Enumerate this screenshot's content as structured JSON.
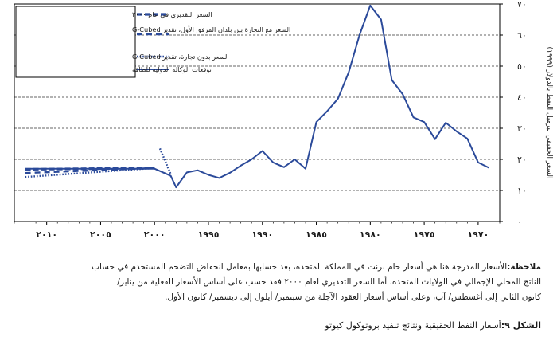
{
  "chart_data": {
    "type": "line",
    "title": "",
    "ylabel": "السعر الحقيقي لبرميل النفط بالدولار (١٩٩٩)",
    "xlabel": "",
    "x_reversed": true,
    "xlim": [
      2013,
      1968
    ],
    "ylim": [
      0,
      70
    ],
    "x_ticks": [
      {
        "value": 2010,
        "label": "٢٠١٠"
      },
      {
        "value": 2005,
        "label": "٢٠٠٥"
      },
      {
        "value": 2000,
        "label": "٢٠٠٠"
      },
      {
        "value": 1995,
        "label": "١٩٩٥"
      },
      {
        "value": 1990,
        "label": "١٩٩٠"
      },
      {
        "value": 1985,
        "label": "١٩٨٥"
      },
      {
        "value": 1980,
        "label": "١٩٨٠"
      },
      {
        "value": 1975,
        "label": "١٩٧٥"
      },
      {
        "value": 1970,
        "label": "١٩٧٠"
      }
    ],
    "y_ticks": [
      {
        "value": 0,
        "label": "٠"
      },
      {
        "value": 10,
        "label": "١٠"
      },
      {
        "value": 20,
        "label": "٢٠"
      },
      {
        "value": 30,
        "label": "٣٠"
      },
      {
        "value": 40,
        "label": "٤٠"
      },
      {
        "value": 50,
        "label": "٥٠"
      },
      {
        "value": 60,
        "label": "٦٠"
      },
      {
        "value": 70,
        "label": "٧٠"
      }
    ],
    "grid": "horizontal dashed",
    "legend_position": "top-left",
    "series": [
      {
        "name": "السعر التقديري في عام ٢٠٠٠",
        "style": "dashed-bold",
        "x": [
          2012,
          2000
        ],
        "y": [
          16.8,
          17.2
        ]
      },
      {
        "name": "السعر مع التجارة بين بلدان المرفق الأول، تقدير G-Cubed",
        "style": "dashed",
        "x": [
          2012,
          2000
        ],
        "y": [
          15.6,
          17.2
        ]
      },
      {
        "name": "السعر بدون تجارة، تقدير G-Cubed",
        "style": "dotted",
        "x": [
          2012,
          2000
        ],
        "y": [
          14.3,
          17.2
        ]
      },
      {
        "name": "",
        "style": "dotted",
        "x": [
          1999.5,
          1998.5
        ],
        "y": [
          23.5,
          15.2
        ]
      },
      {
        "name": "توقعات الوكالة الدولية للطاقة",
        "style": "solid",
        "x": [
          2012,
          2000,
          1998.5,
          1998,
          1997,
          1996,
          1995,
          1994,
          1993,
          1992,
          1991,
          1990,
          1989,
          1988,
          1987,
          1986,
          1985,
          1984,
          1983,
          1982,
          1981,
          1980,
          1979,
          1978,
          1977,
          1976,
          1975,
          1974,
          1973,
          1972,
          1971,
          1970,
          1969
        ],
        "y": [
          17,
          17,
          14.7,
          11,
          15.8,
          16.5,
          15,
          14,
          15.7,
          18,
          20,
          22.7,
          19,
          17.5,
          20,
          17,
          32,
          35.5,
          39.5,
          48,
          60,
          69.5,
          65,
          45.5,
          41,
          33.5,
          32,
          26.5,
          31.8,
          29,
          26.7,
          19,
          17.3
        ]
      }
    ]
  },
  "note": {
    "label": "ملاحظة:",
    "lines": [
      "الأسعار المدرجة هنا هي أسعار خام برنت في المملكة المتحدة، بعد حسابها بمعامل انخفاض التضخم المستخدم في حساب",
      "الناتج المحلي الإجمالي في الولايات المتحدة. أما السعر التقديري لعام ٢٠٠٠ فقد حسب على أساس الأسعار الفعلية من يناير/",
      "كانون الثاني إلى أغسطس/ آب، وعلى أساس أسعار العقود الآجلة من سبتمبر/ أيلول إلى ديسمبر/ كانون الأول."
    ]
  },
  "caption": {
    "label": "الشكل ٩:",
    "text": "أسعار النفط الحقيقية ونتائج تنفيذ بروتوكول كيوتو"
  },
  "colors": {
    "series": "#2b4a9a",
    "axis": "#000000",
    "grid": "#333333",
    "text": "#1a1a1a"
  }
}
